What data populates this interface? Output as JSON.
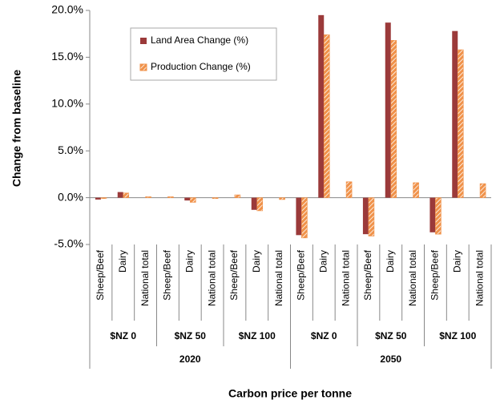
{
  "chart_data": {
    "type": "bar",
    "y_label": "Change from baseline",
    "x_label": "Carbon price per tonne",
    "categories": [
      "Sheep/Beef",
      "Dairy",
      "National total",
      "Sheep/Beef",
      "Dairy",
      "National total",
      "Sheep/Beef",
      "Dairy",
      "National total",
      "Sheep/Beef",
      "Dairy",
      "National total",
      "Sheep/Beef",
      "Dairy",
      "National total",
      "Sheep/Beef",
      "Dairy",
      "National total"
    ],
    "price_groups": [
      "$NZ 0",
      "$NZ 50",
      "$NZ 100",
      "$NZ 0",
      "$NZ 50",
      "$NZ 100"
    ],
    "year_groups": [
      "2020",
      "2050"
    ],
    "series": [
      {
        "name": "Land Area Change (%)",
        "color": "#9b3a3a",
        "hatched": false,
        "values": [
          -0.2,
          0.6,
          0,
          0,
          -0.3,
          0,
          0,
          -1.3,
          0,
          -4.0,
          19.5,
          0,
          -3.9,
          18.7,
          0,
          -3.7,
          17.8,
          0
        ]
      },
      {
        "name": "Production Change (%)",
        "color": "#f0924a",
        "hatched": true,
        "values": [
          -0.1,
          0.5,
          0.1,
          0.1,
          -0.5,
          -0.1,
          0.3,
          -1.4,
          -0.2,
          -4.3,
          17.4,
          1.7,
          -4.1,
          16.8,
          1.6,
          -3.9,
          15.8,
          1.5
        ]
      }
    ],
    "ylim": [
      -5,
      20
    ],
    "yticks": [
      {
        "value": -5,
        "label": "-5.0%"
      },
      {
        "value": 0,
        "label": "0.0%"
      },
      {
        "value": 5,
        "label": "5.0%"
      },
      {
        "value": 10,
        "label": "10.0%"
      },
      {
        "value": 15,
        "label": "15.0%"
      },
      {
        "value": 20,
        "label": "20.0%"
      }
    ]
  }
}
